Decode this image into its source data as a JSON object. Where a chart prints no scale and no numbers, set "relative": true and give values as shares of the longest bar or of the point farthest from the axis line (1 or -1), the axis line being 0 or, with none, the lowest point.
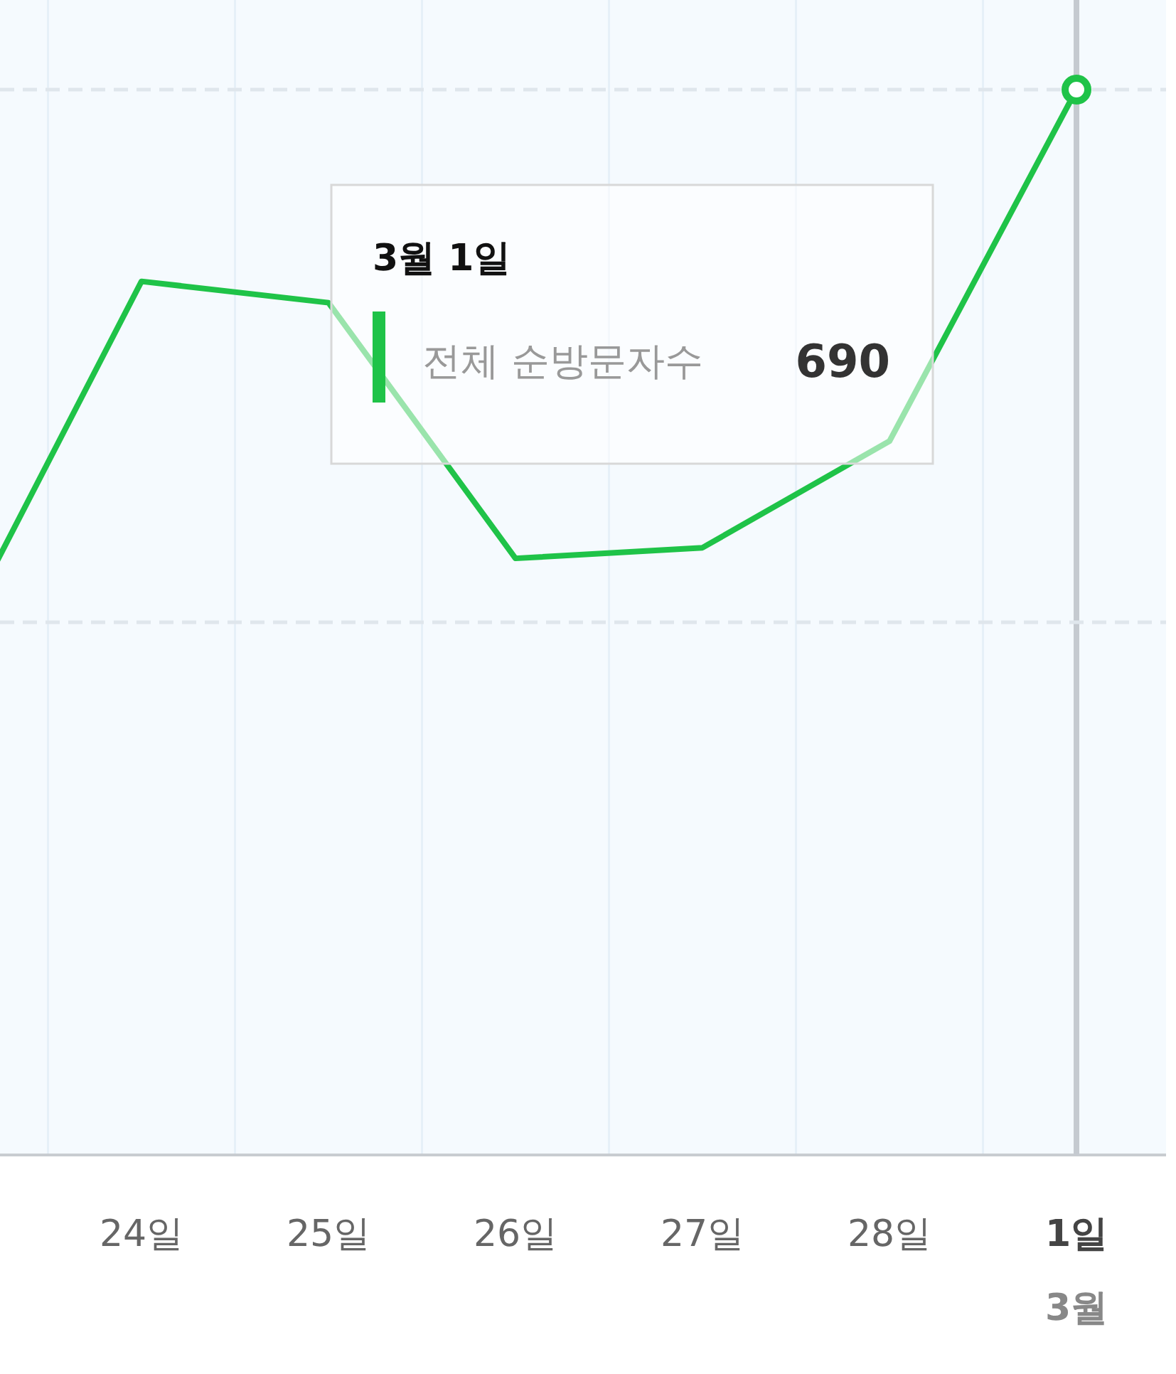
{
  "chart_data": {
    "type": "line",
    "relative": true,
    "grid": "x",
    "marker": "none",
    "line_style": "solid",
    "categories": [
      null,
      "24일",
      "25일",
      "26일",
      "27일",
      "28일",
      "1일"
    ],
    "series": [
      {
        "name": "전체 순방문자수",
        "color": "#1fc348",
        "values": [
          0.48,
          0.82,
          0.8,
          0.56,
          0.57,
          0.67,
          1
        ]
      }
    ],
    "ref_lines": [
      {
        "axis": "x",
        "value": "1일",
        "color": "#c5cad0"
      },
      {
        "axis": "y",
        "value": 0.5,
        "color": "#dfe6ec",
        "line_style": "dashed"
      },
      {
        "axis": "y",
        "value": 1,
        "color": "#dfe6ec",
        "line_style": "dashed"
      }
    ],
    "annotations": [
      "3월 1일",
      "690",
      "3월"
    ]
  }
}
